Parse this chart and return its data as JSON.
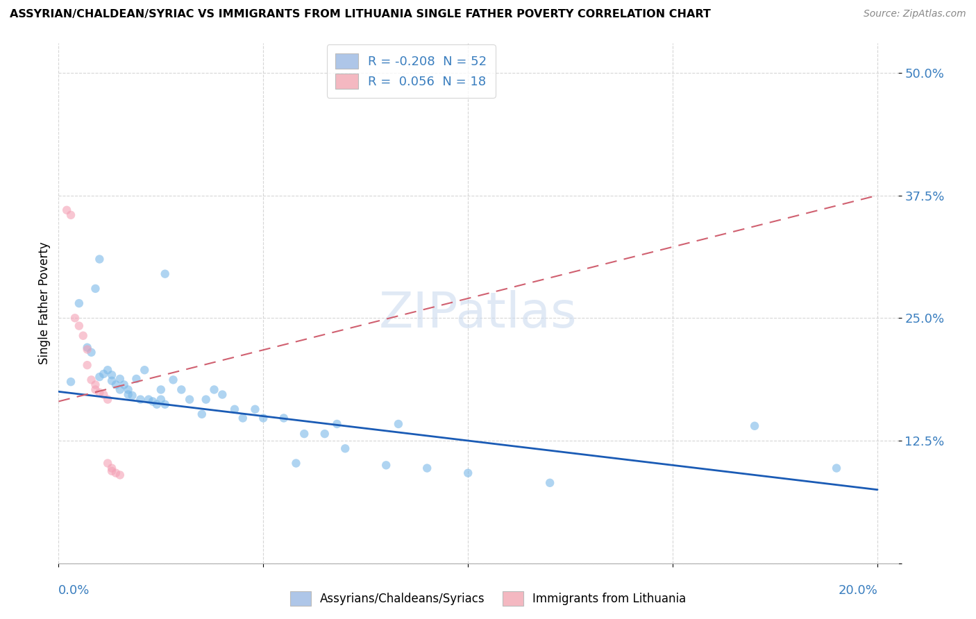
{
  "title": "ASSYRIAN/CHALDEAN/SYRIAC VS IMMIGRANTS FROM LITHUANIA SINGLE FATHER POVERTY CORRELATION CHART",
  "source": "Source: ZipAtlas.com",
  "ylabel": "Single Father Poverty",
  "legend_entries": [
    {
      "label": "R = -0.208  N = 52",
      "color": "#aec6e8"
    },
    {
      "label": "R =  0.056  N = 18",
      "color": "#f4b8c1"
    }
  ],
  "scatter_blue": [
    [
      0.003,
      0.185
    ],
    [
      0.005,
      0.265
    ],
    [
      0.007,
      0.22
    ],
    [
      0.008,
      0.215
    ],
    [
      0.009,
      0.28
    ],
    [
      0.01,
      0.31
    ],
    [
      0.01,
      0.19
    ],
    [
      0.011,
      0.193
    ],
    [
      0.012,
      0.197
    ],
    [
      0.013,
      0.192
    ],
    [
      0.013,
      0.186
    ],
    [
      0.014,
      0.182
    ],
    [
      0.015,
      0.177
    ],
    [
      0.015,
      0.188
    ],
    [
      0.016,
      0.182
    ],
    [
      0.017,
      0.177
    ],
    [
      0.017,
      0.172
    ],
    [
      0.018,
      0.171
    ],
    [
      0.019,
      0.188
    ],
    [
      0.02,
      0.167
    ],
    [
      0.021,
      0.197
    ],
    [
      0.022,
      0.167
    ],
    [
      0.023,
      0.165
    ],
    [
      0.024,
      0.162
    ],
    [
      0.025,
      0.167
    ],
    [
      0.025,
      0.177
    ],
    [
      0.026,
      0.295
    ],
    [
      0.026,
      0.162
    ],
    [
      0.028,
      0.187
    ],
    [
      0.03,
      0.177
    ],
    [
      0.032,
      0.167
    ],
    [
      0.035,
      0.152
    ],
    [
      0.036,
      0.167
    ],
    [
      0.038,
      0.177
    ],
    [
      0.04,
      0.172
    ],
    [
      0.043,
      0.157
    ],
    [
      0.045,
      0.148
    ],
    [
      0.048,
      0.157
    ],
    [
      0.05,
      0.148
    ],
    [
      0.055,
      0.148
    ],
    [
      0.058,
      0.102
    ],
    [
      0.06,
      0.132
    ],
    [
      0.065,
      0.132
    ],
    [
      0.068,
      0.142
    ],
    [
      0.07,
      0.117
    ],
    [
      0.08,
      0.1
    ],
    [
      0.083,
      0.142
    ],
    [
      0.09,
      0.097
    ],
    [
      0.1,
      0.092
    ],
    [
      0.12,
      0.082
    ],
    [
      0.17,
      0.14
    ],
    [
      0.19,
      0.097
    ]
  ],
  "scatter_pink": [
    [
      0.002,
      0.36
    ],
    [
      0.003,
      0.355
    ],
    [
      0.004,
      0.25
    ],
    [
      0.005,
      0.242
    ],
    [
      0.006,
      0.232
    ],
    [
      0.007,
      0.218
    ],
    [
      0.007,
      0.202
    ],
    [
      0.008,
      0.187
    ],
    [
      0.009,
      0.182
    ],
    [
      0.009,
      0.177
    ],
    [
      0.01,
      0.174
    ],
    [
      0.011,
      0.172
    ],
    [
      0.012,
      0.167
    ],
    [
      0.012,
      0.102
    ],
    [
      0.013,
      0.097
    ],
    [
      0.013,
      0.094
    ],
    [
      0.014,
      0.092
    ],
    [
      0.015,
      0.09
    ]
  ],
  "trendline_blue": {
    "x": [
      0.0,
      0.2
    ],
    "y": [
      0.175,
      0.075
    ]
  },
  "trendline_pink": {
    "x": [
      0.0,
      0.2
    ],
    "y": [
      0.165,
      0.375
    ]
  },
  "watermark": "ZIPatlas",
  "xlim": [
    0.0,
    0.205
  ],
  "ylim": [
    0.0,
    0.53
  ],
  "yticks": [
    0.0,
    0.125,
    0.25,
    0.375,
    0.5
  ],
  "ytick_labels": [
    "",
    "12.5%",
    "25.0%",
    "37.5%",
    "50.0%"
  ],
  "background_color": "#ffffff",
  "dot_size": 80,
  "dot_alpha": 0.6,
  "blue_color": "#7ab8e8",
  "pink_color": "#f4a0b5",
  "trend_blue_color": "#1a5bb5",
  "trend_pink_color": "#d06070",
  "grid_color": "#cccccc"
}
